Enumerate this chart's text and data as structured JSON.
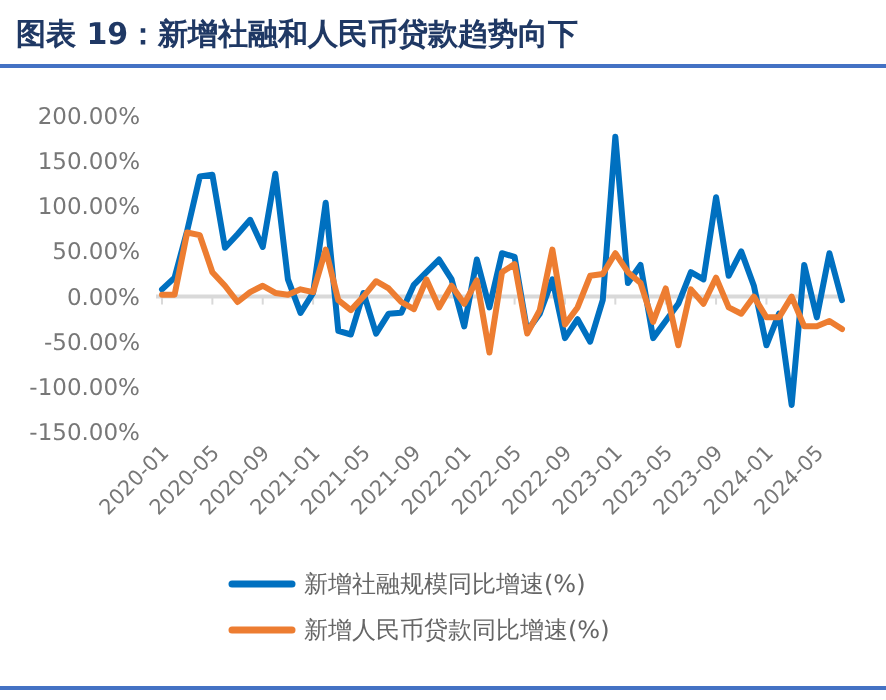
{
  "chart_data": {
    "type": "line",
    "title": "图表 19：新增社融和人民币贷款趋势向下",
    "categories": [
      "2020-01",
      null,
      null,
      null,
      "2020-05",
      null,
      null,
      null,
      "2020-09",
      null,
      null,
      null,
      "2021-01",
      null,
      null,
      null,
      "2021-05",
      null,
      null,
      null,
      "2021-09",
      null,
      null,
      null,
      "2022-01",
      null,
      null,
      null,
      "2022-05",
      null,
      null,
      null,
      "2022-09",
      null,
      null,
      null,
      "2023-01",
      null,
      null,
      null,
      "2023-05",
      null,
      null,
      null,
      "2023-09",
      null,
      null,
      null,
      "2024-01",
      null,
      null,
      null,
      "2024-05",
      null,
      null
    ],
    "series": [
      {
        "name": "新增社融规模同比增速(%)",
        "color": "#0070c0",
        "values": [
          8,
          21,
          73,
          133,
          135,
          54,
          69,
          85,
          55,
          136,
          19,
          -18,
          4,
          104,
          -38,
          -42,
          4,
          -41,
          -19,
          -18,
          13,
          27,
          41,
          19,
          -33,
          41,
          -12,
          48,
          44,
          -38,
          -19,
          19,
          -46,
          -25,
          -50,
          -4,
          177,
          15,
          35,
          -46,
          -27,
          -8,
          27,
          19,
          110,
          23,
          50,
          12,
          -54,
          -19,
          -120,
          35,
          -23,
          48,
          -4
        ]
      },
      {
        "name": "新增人民币贷款同比增速(%)",
        "color": "#ed7d31",
        "values": [
          2,
          2,
          71,
          68,
          27,
          12,
          -6,
          5,
          12,
          4,
          2,
          8,
          5,
          52,
          -4,
          -15,
          0,
          17,
          9,
          -6,
          -14,
          19,
          -12,
          12,
          -8,
          18,
          -62,
          27,
          36,
          -41,
          -15,
          52,
          -31,
          -12,
          23,
          25,
          48,
          27,
          15,
          -28,
          9,
          -54,
          8,
          -8,
          21,
          -12,
          -19,
          0,
          -23,
          -23,
          0,
          -33,
          -33,
          -27,
          -36
        ]
      }
    ],
    "ylim": [
      -150,
      200
    ],
    "yticks": [
      {
        "value": -150,
        "label": "-150.00%"
      },
      {
        "value": -100,
        "label": "-100.00%"
      },
      {
        "value": -50,
        "label": "-50.00%"
      },
      {
        "value": 0,
        "label": "0.00%"
      },
      {
        "value": 50,
        "label": "50.00%"
      },
      {
        "value": 100,
        "label": "100.00%"
      },
      {
        "value": 150,
        "label": "150.00%"
      },
      {
        "value": 200,
        "label": "200.00%"
      }
    ],
    "legend": "bottom"
  }
}
